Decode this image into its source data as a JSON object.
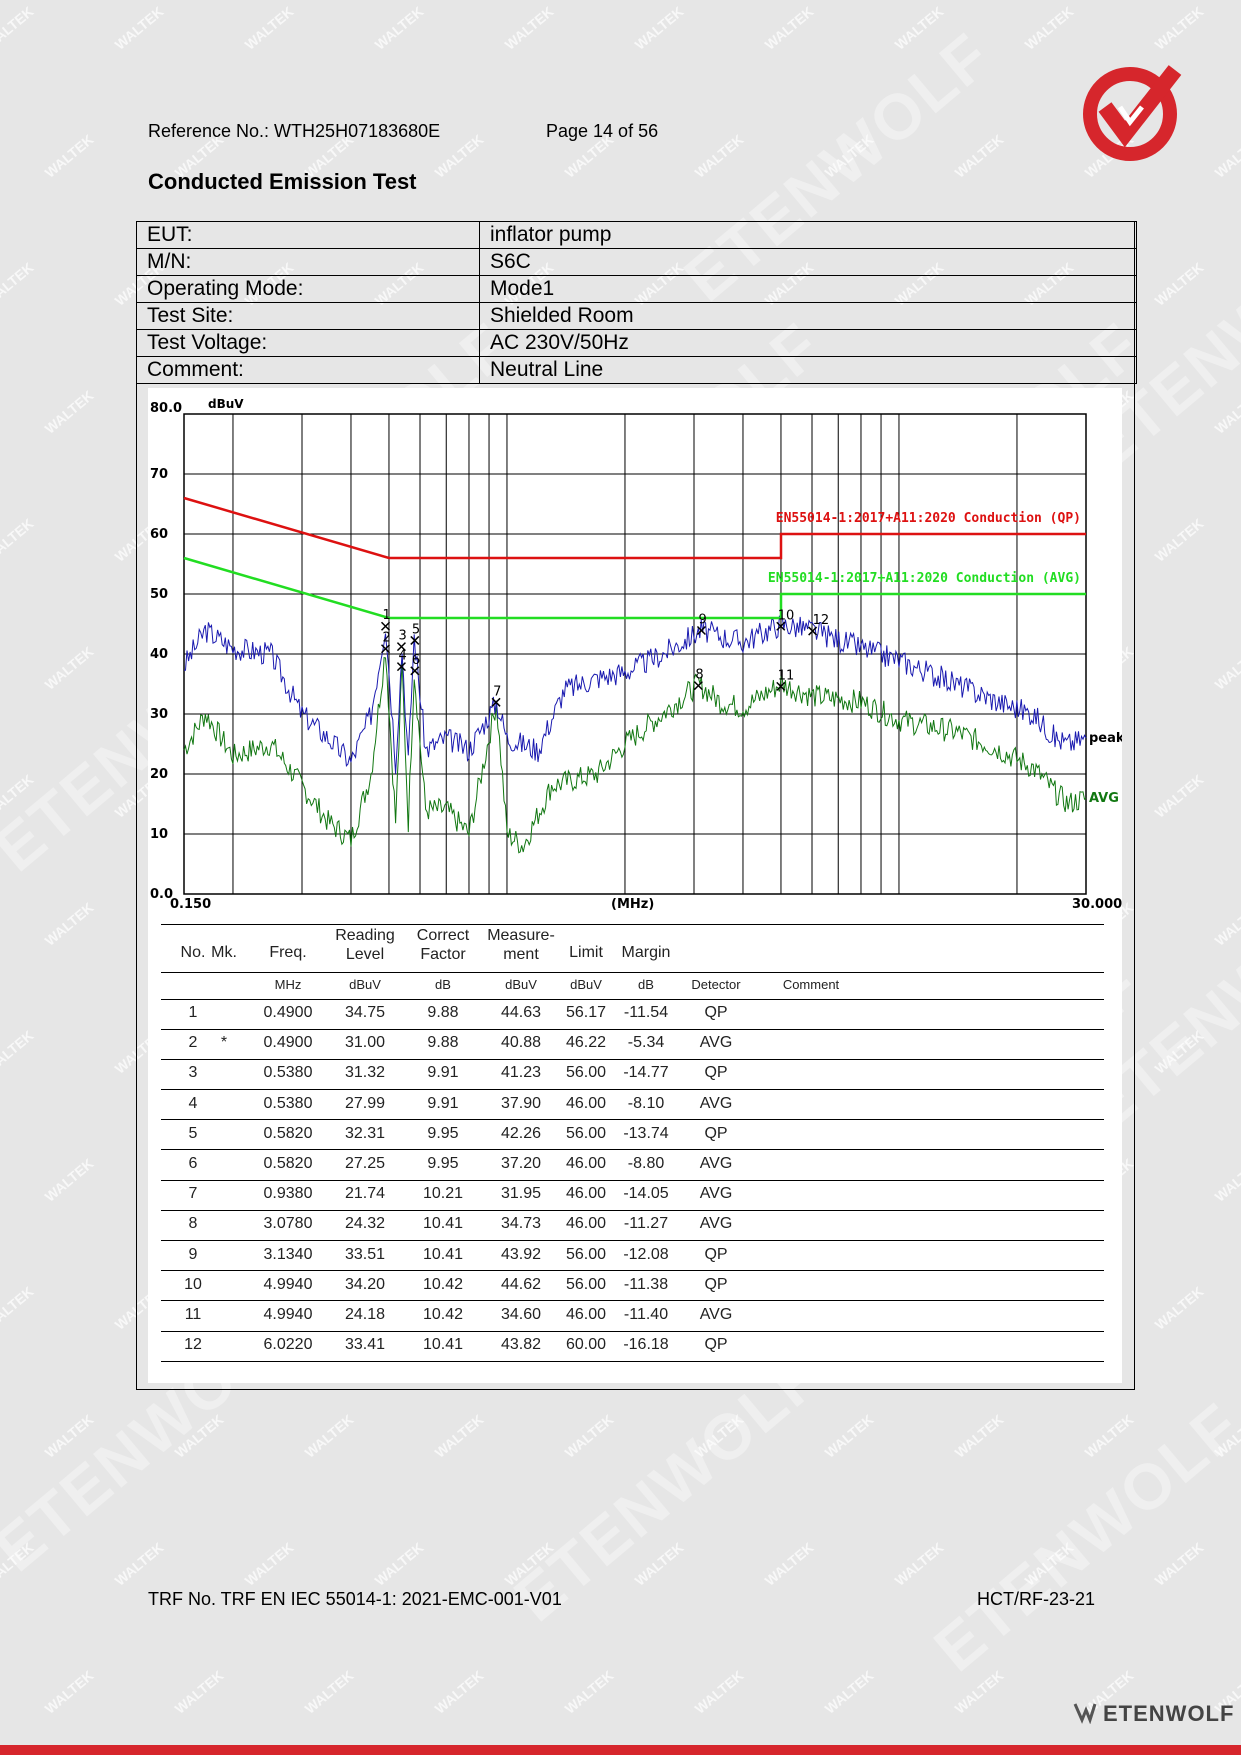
{
  "header": {
    "reference": "Reference No.: WTH25H07183680E",
    "page": "Page 14 of 56"
  },
  "title": "Conducted Emission Test",
  "info_rows": [
    {
      "label": "EUT:",
      "value": "inflator pump"
    },
    {
      "label": "M/N:",
      "value": "S6C"
    },
    {
      "label": "Operating Mode:",
      "value": "Mode1"
    },
    {
      "label": "Test Site:",
      "value": "Shielded Room"
    },
    {
      "label": "Test Voltage:",
      "value": "AC 230V/50Hz"
    },
    {
      "label": "Comment:",
      "value": "Neutral Line"
    }
  ],
  "chart_data": {
    "type": "line",
    "ylabel": "dBuV",
    "xlabel": "(MHz)",
    "x_scale": "log",
    "xlim": [
      0.15,
      30
    ],
    "ylim": [
      0,
      80
    ],
    "y_ticks": [
      "80.0",
      "70",
      "60",
      "50",
      "40",
      "30",
      "20",
      "10",
      "0.0"
    ],
    "x_tick_labels": [
      "0.150",
      "30.000"
    ],
    "colors": {
      "qp_limit": "#dd1111",
      "avg_limit": "#22dd22",
      "peak": "#1a1ab0",
      "avg": "#117711"
    },
    "limit_lines": [
      {
        "name": "EN55014-1:2017+A11:2020 Conduction (QP)",
        "points": [
          [
            0.15,
            66
          ],
          [
            0.5,
            56
          ],
          [
            5,
            56
          ],
          [
            5,
            60
          ],
          [
            30,
            60
          ]
        ]
      },
      {
        "name": "EN55014-1:2017+A11:2020 Conduction (AVG)",
        "points": [
          [
            0.15,
            56
          ],
          [
            0.5,
            46
          ],
          [
            5,
            46
          ],
          [
            5,
            50
          ],
          [
            30,
            50
          ]
        ]
      }
    ],
    "series": [
      {
        "name": "peak",
        "points": [
          [
            0.15,
            38
          ],
          [
            0.17,
            44
          ],
          [
            0.2,
            41
          ],
          [
            0.25,
            40
          ],
          [
            0.3,
            30
          ],
          [
            0.35,
            26
          ],
          [
            0.4,
            22
          ],
          [
            0.45,
            30
          ],
          [
            0.49,
            45
          ],
          [
            0.52,
            22
          ],
          [
            0.54,
            41
          ],
          [
            0.56,
            22
          ],
          [
            0.58,
            43
          ],
          [
            0.62,
            24
          ],
          [
            0.7,
            26
          ],
          [
            0.8,
            24
          ],
          [
            0.94,
            32
          ],
          [
            1.0,
            26
          ],
          [
            1.2,
            24
          ],
          [
            1.4,
            34
          ],
          [
            1.7,
            36
          ],
          [
            2.0,
            37
          ],
          [
            2.5,
            40
          ],
          [
            3.13,
            44
          ],
          [
            3.5,
            43
          ],
          [
            4.0,
            42
          ],
          [
            5.0,
            45
          ],
          [
            6.0,
            44
          ],
          [
            8.0,
            41
          ],
          [
            10,
            39
          ],
          [
            14,
            35
          ],
          [
            18,
            32
          ],
          [
            22,
            30
          ],
          [
            25,
            26
          ],
          [
            27,
            25
          ],
          [
            30,
            26
          ]
        ]
      },
      {
        "name": "AVG",
        "points": [
          [
            0.15,
            24
          ],
          [
            0.17,
            30
          ],
          [
            0.2,
            23
          ],
          [
            0.25,
            25
          ],
          [
            0.3,
            18
          ],
          [
            0.35,
            12
          ],
          [
            0.4,
            9
          ],
          [
            0.45,
            20
          ],
          [
            0.49,
            41
          ],
          [
            0.52,
            12
          ],
          [
            0.54,
            38
          ],
          [
            0.56,
            12
          ],
          [
            0.58,
            37
          ],
          [
            0.62,
            14
          ],
          [
            0.7,
            14
          ],
          [
            0.8,
            10
          ],
          [
            0.94,
            32
          ],
          [
            1.0,
            10
          ],
          [
            1.1,
            8
          ],
          [
            1.3,
            18
          ],
          [
            1.7,
            20
          ],
          [
            2.0,
            25
          ],
          [
            2.5,
            30
          ],
          [
            3.08,
            35
          ],
          [
            3.5,
            32
          ],
          [
            4.0,
            31
          ],
          [
            5.0,
            35
          ],
          [
            6.0,
            33
          ],
          [
            8.0,
            32
          ],
          [
            10,
            29
          ],
          [
            14,
            27
          ],
          [
            18,
            24
          ],
          [
            22,
            21
          ],
          [
            25,
            17
          ],
          [
            27,
            15
          ],
          [
            30,
            16
          ]
        ]
      }
    ],
    "series_labels": [
      "peak",
      "AVG"
    ],
    "markers": [
      {
        "label": "1",
        "freq": 0.49,
        "level": 44.63
      },
      {
        "label": "2",
        "freq": 0.49,
        "level": 40.88
      },
      {
        "label": "3",
        "freq": 0.538,
        "level": 41.23
      },
      {
        "label": "4",
        "freq": 0.538,
        "level": 37.9
      },
      {
        "label": "5",
        "freq": 0.582,
        "level": 42.26
      },
      {
        "label": "6",
        "freq": 0.582,
        "level": 37.2
      },
      {
        "label": "7",
        "freq": 0.938,
        "level": 31.95
      },
      {
        "label": "8",
        "freq": 3.078,
        "level": 34.73
      },
      {
        "label": "9",
        "freq": 3.134,
        "level": 43.92
      },
      {
        "label": "10",
        "freq": 4.994,
        "level": 44.62
      },
      {
        "label": "11",
        "freq": 4.994,
        "level": 34.6
      },
      {
        "label": "12",
        "freq": 6.022,
        "level": 43.82
      }
    ]
  },
  "table": {
    "headers": [
      "No.",
      "Mk.",
      "Freq.",
      "Reading Level",
      "Correct Factor",
      "Measure- ment",
      "Limit",
      "Margin",
      "",
      ""
    ],
    "units": [
      "",
      "",
      "MHz",
      "dBuV",
      "dB",
      "dBuV",
      "dBuV",
      "dB",
      "Detector",
      "Comment"
    ],
    "rows": [
      [
        "1",
        "",
        "0.4900",
        "34.75",
        "9.88",
        "44.63",
        "56.17",
        "-11.54",
        "QP",
        ""
      ],
      [
        "2",
        "*",
        "0.4900",
        "31.00",
        "9.88",
        "40.88",
        "46.22",
        "-5.34",
        "AVG",
        ""
      ],
      [
        "3",
        "",
        "0.5380",
        "31.32",
        "9.91",
        "41.23",
        "56.00",
        "-14.77",
        "QP",
        ""
      ],
      [
        "4",
        "",
        "0.5380",
        "27.99",
        "9.91",
        "37.90",
        "46.00",
        "-8.10",
        "AVG",
        ""
      ],
      [
        "5",
        "",
        "0.5820",
        "32.31",
        "9.95",
        "42.26",
        "56.00",
        "-13.74",
        "QP",
        ""
      ],
      [
        "6",
        "",
        "0.5820",
        "27.25",
        "9.95",
        "37.20",
        "46.00",
        "-8.80",
        "AVG",
        ""
      ],
      [
        "7",
        "",
        "0.9380",
        "21.74",
        "10.21",
        "31.95",
        "46.00",
        "-14.05",
        "AVG",
        ""
      ],
      [
        "8",
        "",
        "3.0780",
        "24.32",
        "10.41",
        "34.73",
        "46.00",
        "-11.27",
        "AVG",
        ""
      ],
      [
        "9",
        "",
        "3.1340",
        "33.51",
        "10.41",
        "43.92",
        "56.00",
        "-12.08",
        "QP",
        ""
      ],
      [
        "10",
        "",
        "4.9940",
        "34.20",
        "10.42",
        "44.62",
        "56.00",
        "-11.38",
        "QP",
        ""
      ],
      [
        "11",
        "",
        "4.9940",
        "24.18",
        "10.42",
        "34.60",
        "46.00",
        "-11.40",
        "AVG",
        ""
      ],
      [
        "12",
        "",
        "6.0220",
        "33.41",
        "10.41",
        "43.82",
        "60.00",
        "-16.18",
        "QP",
        ""
      ]
    ]
  },
  "footer": {
    "trf": "TRF No. TRF EN IEC 55014-1: 2021-EMC-001-V01",
    "code": "HCT/RF-23-21",
    "brand": "ETENWOLF"
  },
  "watermarks": {
    "small": "WALTEK",
    "large": "ETENWOLF"
  }
}
